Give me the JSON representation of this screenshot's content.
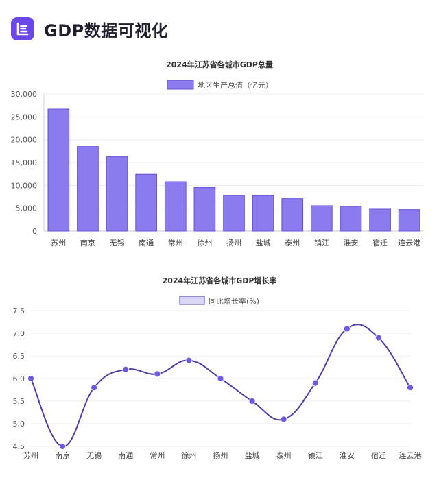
{
  "header": {
    "title": "GDP数据可视化",
    "logo_icon": "chart-logo-icon",
    "accent": "#6b46e8"
  },
  "chart_data": [
    {
      "type": "bar",
      "title": "2024年江苏省各城市GDP总量",
      "legend": "地区生产总值（亿元）",
      "legend_position": "top",
      "categories": [
        "苏州",
        "南京",
        "无锡",
        "南通",
        "常州",
        "徐州",
        "扬州",
        "盐城",
        "泰州",
        "镇江",
        "淮安",
        "宿迁",
        "连云港"
      ],
      "series": [
        {
          "name": "地区生产总值（亿元）",
          "values": [
            26700,
            18500,
            16260,
            12420,
            10800,
            9540,
            7800,
            7780,
            7100,
            5560,
            5420,
            4800,
            4700
          ],
          "color": "#8a7cee",
          "border": "#6550d8"
        }
      ],
      "ylim": [
        0,
        30000
      ],
      "yticks": [
        "0",
        "5,000",
        "10,000",
        "15,000",
        "20,000",
        "25,000",
        "30,000"
      ],
      "grid": true
    },
    {
      "type": "line",
      "title": "2024年江苏省各城市GDP增长率",
      "legend": "同比增长率(%)",
      "legend_position": "top",
      "categories": [
        "苏州",
        "南京",
        "无锡",
        "南通",
        "常州",
        "徐州",
        "扬州",
        "盐城",
        "泰州",
        "镇江",
        "淮安",
        "宿迁",
        "连云港"
      ],
      "series": [
        {
          "name": "同比增长率(%)",
          "values": [
            6.0,
            4.5,
            5.8,
            6.2,
            6.1,
            6.4,
            6.0,
            5.5,
            5.1,
            5.9,
            7.1,
            6.9,
            5.8
          ],
          "color": "#4b3fa8",
          "point_color": "#6a5ae0"
        }
      ],
      "ylim": [
        4.5,
        7.5
      ],
      "yticks": [
        "4.5",
        "5.0",
        "5.5",
        "6.0",
        "6.5",
        "7.0",
        "7.5"
      ],
      "grid": true,
      "smooth": true
    }
  ]
}
